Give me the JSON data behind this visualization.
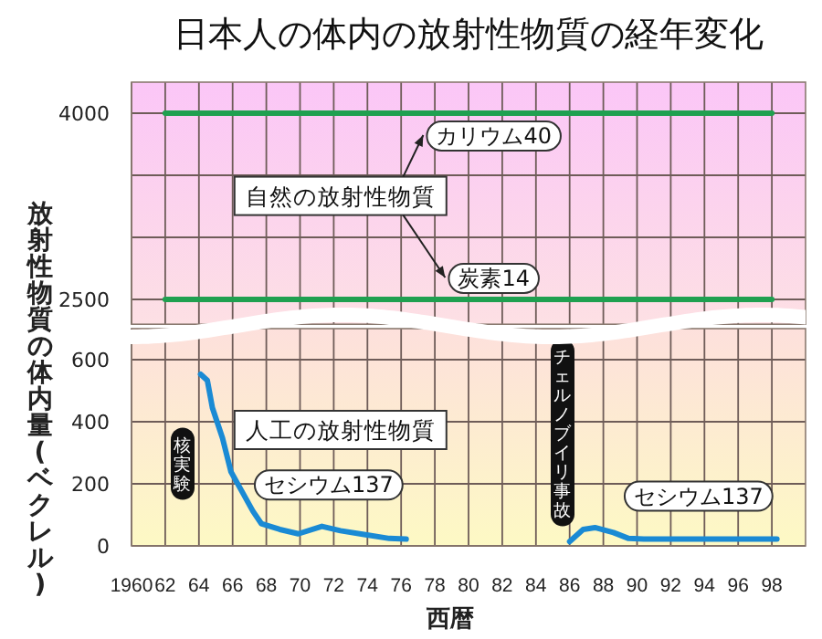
{
  "chart_data": [
    {
      "type": "line",
      "title": "日本人の体内の放射性物質の経年変化",
      "xlim": [
        1960,
        2000
      ],
      "xticks": [
        1960,
        1962,
        1964,
        1966,
        1968,
        1970,
        1972,
        1974,
        1976,
        1978,
        1980,
        1982,
        1984,
        1986,
        1988,
        1990,
        1992,
        1994,
        1996,
        1998
      ],
      "ylim": [
        2300,
        4250
      ],
      "yticks": [
        2500,
        {
          "value": 3000,
          "label": null
        },
        {
          "value": 3500,
          "label": null
        },
        4000
      ],
      "grid": true,
      "tick_labels": "y",
      "series": [
        {
          "name": "カリウム40",
          "color": "#1fa050",
          "x": [
            1962,
            1998
          ],
          "values": [
            4000,
            4000
          ]
        },
        {
          "name": "炭素14",
          "color": "#1fa050",
          "x": [
            1962,
            1998
          ],
          "values": [
            2500,
            2500
          ]
        }
      ],
      "annotations": [
        "自然の放射性物質"
      ]
    },
    {
      "type": "line",
      "xlabel": "西暦",
      "ylabel": "放射性物質の体内量(ベクレル)",
      "xlim": [
        1960,
        2000
      ],
      "xticks": [
        {
          "value": 1960,
          "label": "1960"
        },
        {
          "value": 1962,
          "label": "62"
        },
        {
          "value": 1964,
          "label": "64"
        },
        {
          "value": 1966,
          "label": "66"
        },
        {
          "value": 1968,
          "label": "68"
        },
        {
          "value": 1970,
          "label": "70"
        },
        {
          "value": 1972,
          "label": "72"
        },
        {
          "value": 1974,
          "label": "74"
        },
        {
          "value": 1976,
          "label": "76"
        },
        {
          "value": 1978,
          "label": "78"
        },
        {
          "value": 1980,
          "label": "80"
        },
        {
          "value": 1982,
          "label": "82"
        },
        {
          "value": 1984,
          "label": "84"
        },
        {
          "value": 1986,
          "label": "86"
        },
        {
          "value": 1988,
          "label": "88"
        },
        {
          "value": 1990,
          "label": "90"
        },
        {
          "value": 1992,
          "label": "92"
        },
        {
          "value": 1994,
          "label": "94"
        },
        {
          "value": 1996,
          "label": "96"
        },
        {
          "value": 1998,
          "label": "98"
        }
      ],
      "ylim": [
        0,
        700
      ],
      "yticks": [
        0,
        200,
        400,
        600
      ],
      "grid": true,
      "series": [
        {
          "name": "セシウム137",
          "color": "#1a8ad4",
          "x": [
            1964.1,
            1964.5,
            1964.8,
            1965.4,
            1965.9,
            1966.6,
            1967.2,
            1967.7,
            1968.8,
            1969.9,
            1971.3,
            1972.4,
            1973.8,
            1975.3,
            1976.3
          ],
          "values": [
            553,
            533,
            445,
            347,
            239,
            171,
            112,
            72,
            53,
            39,
            63,
            49,
            37,
            24,
            22
          ]
        },
        {
          "name": "セシウム137",
          "color": "#1a8ad4",
          "x": [
            1986.0,
            1986.8,
            1987.5,
            1988.6,
            1989.5,
            1990.4,
            1998.3
          ],
          "values": [
            14,
            53,
            59,
            43,
            24,
            22,
            22
          ]
        }
      ],
      "annotations": [
        "核実験",
        "チェルノブイリ事故",
        "人工の放射性物質"
      ]
    }
  ]
}
